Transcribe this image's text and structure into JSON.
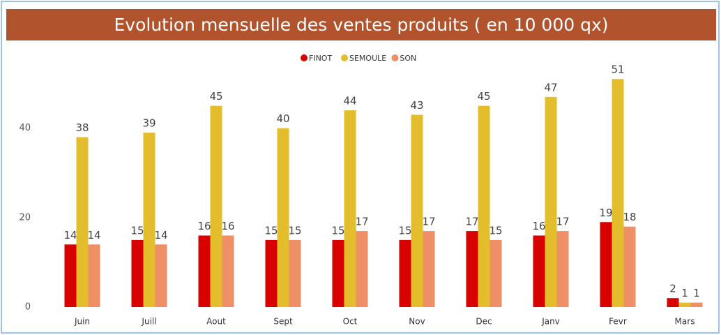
{
  "chart_data": {
    "type": "bar",
    "title": "Evolution mensuelle des ventes produits ( en 10 000 qx)",
    "categories": [
      "Juin",
      "Juill",
      "Aout",
      "Sept",
      "Oct",
      "Nov",
      "Dec",
      "Janv",
      "Fevr",
      "Mars"
    ],
    "series": [
      {
        "name": "FINOT",
        "color": "#d90000",
        "values": [
          14,
          15,
          16,
          15,
          15,
          15,
          17,
          16,
          19,
          2
        ]
      },
      {
        "name": "SEMOULE",
        "color": "#e3bd2b",
        "values": [
          38,
          39,
          45,
          40,
          44,
          43,
          45,
          47,
          51,
          1
        ]
      },
      {
        "name": "SON",
        "color": "#ee8f68",
        "values": [
          14,
          14,
          16,
          15,
          17,
          17,
          15,
          17,
          18,
          1
        ]
      }
    ],
    "ylim": [
      0,
      54
    ],
    "yticks": [
      0,
      20,
      40
    ],
    "grid": false,
    "legend": "top"
  }
}
